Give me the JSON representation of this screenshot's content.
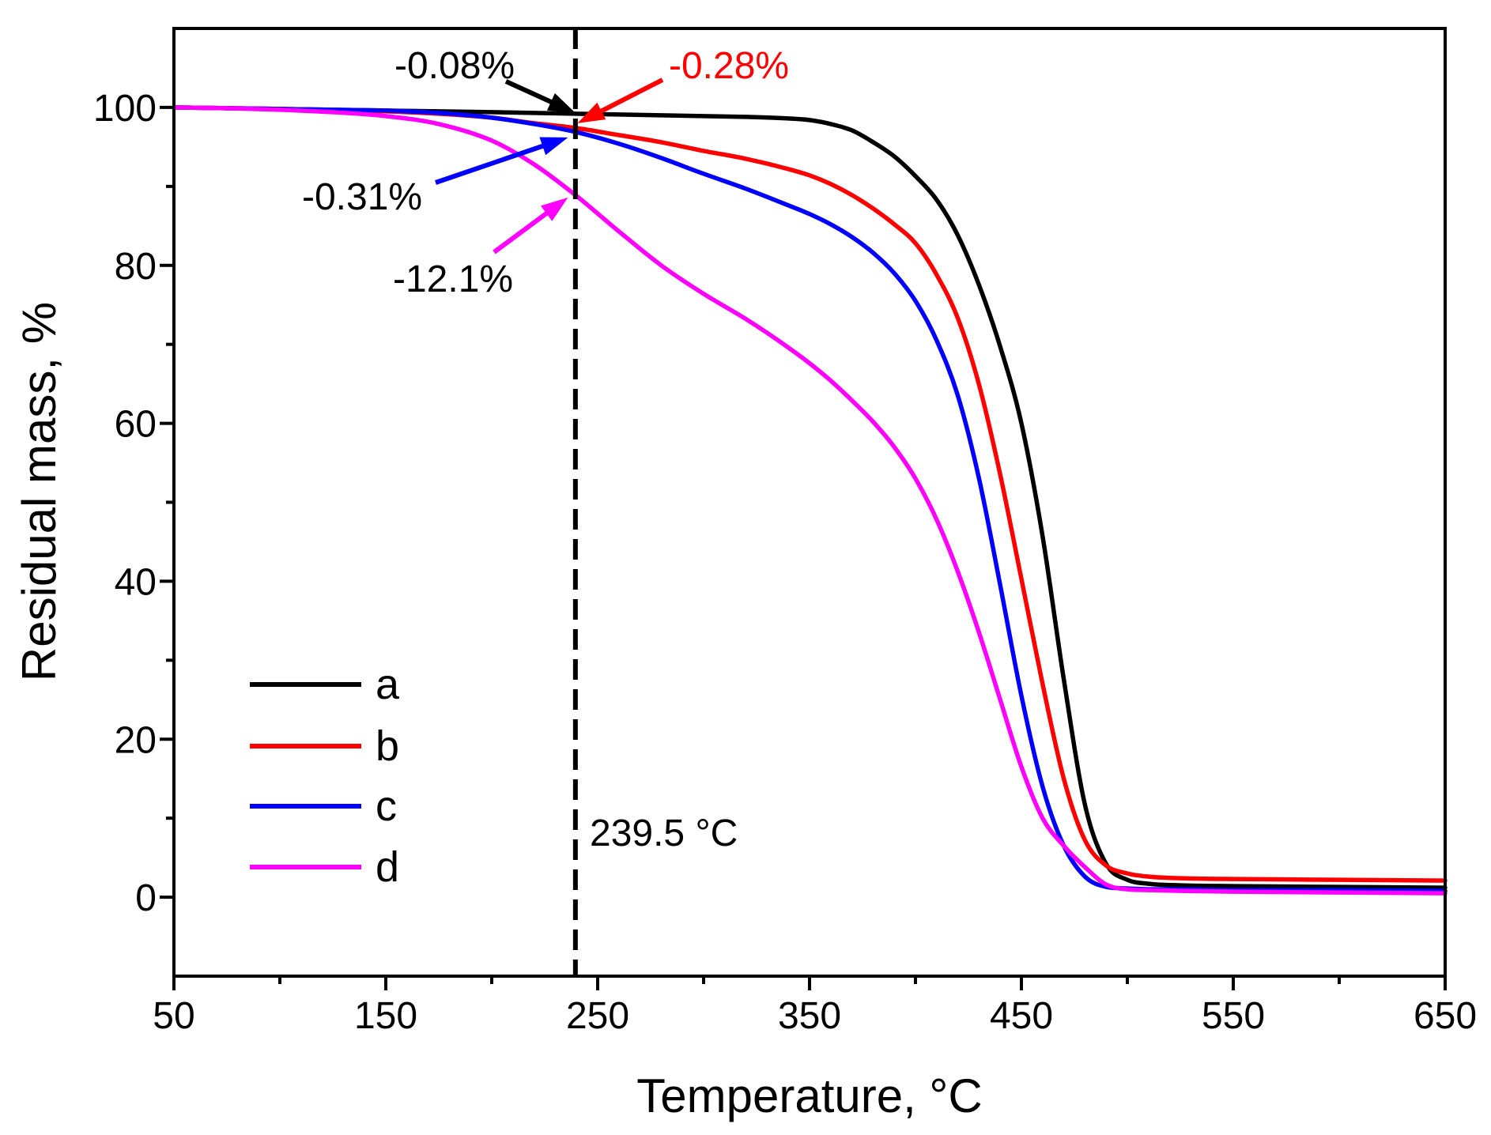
{
  "chart_data": {
    "type": "line",
    "xlabel": "Temperature, °C",
    "ylabel": "Residual mass, %",
    "xlim": [
      50,
      650
    ],
    "ylim": [
      -10,
      110
    ],
    "xticks": [
      50,
      150,
      250,
      350,
      450,
      550,
      650
    ],
    "xminor": [
      100,
      200,
      300,
      400,
      500,
      600
    ],
    "yticks": [
      0,
      20,
      40,
      60,
      80,
      100
    ],
    "yminor": [
      10,
      30,
      50,
      70,
      90
    ],
    "grid": false,
    "x": [
      50,
      75,
      100,
      125,
      150,
      175,
      200,
      220,
      239.5,
      260,
      280,
      300,
      320,
      340,
      350,
      360,
      370,
      380,
      390,
      400,
      410,
      420,
      430,
      440,
      450,
      460,
      470,
      480,
      490,
      500,
      510,
      525,
      550,
      600,
      650
    ],
    "series": [
      {
        "name": "a",
        "color": "#000000",
        "values": [
          100,
          99.9,
          99.8,
          99.7,
          99.6,
          99.5,
          99.4,
          99.3,
          99.2,
          99.1,
          99.0,
          98.9,
          98.8,
          98.6,
          98.4,
          97.9,
          97.1,
          95.6,
          93.8,
          91.3,
          88.3,
          83.8,
          77.5,
          69.7,
          60.0,
          45.7,
          27.6,
          11.7,
          4.2,
          2.2,
          1.7,
          1.5,
          1.4,
          1.3,
          1.2
        ]
      },
      {
        "name": "b",
        "color": "#ff0000",
        "values": [
          100,
          99.9,
          99.8,
          99.6,
          99.5,
          99.2,
          98.7,
          98.0,
          97.4,
          96.5,
          95.6,
          94.5,
          93.5,
          92.2,
          91.4,
          90.3,
          88.9,
          87.2,
          85.2,
          82.8,
          78.8,
          73.3,
          64.9,
          53.5,
          40.3,
          27.0,
          15.0,
          7.2,
          4.0,
          3.0,
          2.6,
          2.4,
          2.3,
          2.2,
          2.1
        ]
      },
      {
        "name": "c",
        "color": "#0000ff",
        "values": [
          100,
          99.9,
          99.8,
          99.7,
          99.6,
          99.3,
          98.7,
          97.9,
          96.9,
          95.4,
          93.6,
          91.6,
          89.7,
          87.6,
          86.5,
          85.2,
          83.6,
          81.6,
          79.0,
          75.5,
          70.5,
          63.5,
          53.0,
          39.5,
          25.5,
          14.0,
          6.5,
          2.6,
          1.3,
          1.1,
          1.0,
          1.0,
          0.9,
          0.9,
          0.8
        ]
      },
      {
        "name": "d",
        "color": "#ff00ff",
        "values": [
          100,
          99.9,
          99.7,
          99.4,
          98.9,
          97.9,
          95.8,
          92.8,
          88.9,
          84.3,
          80.0,
          76.4,
          73.2,
          69.6,
          67.6,
          65.4,
          62.9,
          60.2,
          57.0,
          53.0,
          47.8,
          41.2,
          33.5,
          25.0,
          16.5,
          10.0,
          6.5,
          3.8,
          1.6,
          1.0,
          0.9,
          0.8,
          0.7,
          0.6,
          0.5
        ]
      }
    ],
    "vline": {
      "x": 239.5,
      "label": "239.5 °C"
    },
    "annotations": [
      {
        "text": "-0.08%",
        "x": 239.5,
        "y": 99.3,
        "text_color": "#000000",
        "arrow_color": "#000000"
      },
      {
        "text": "-0.28%",
        "x": 240.5,
        "y": 98.0,
        "text_color": "#ff0000",
        "arrow_color": "#ff0000"
      },
      {
        "text": "-0.31%",
        "x": 236.0,
        "y": 96.2,
        "text_color": "#000000",
        "arrow_color": "#0000ff"
      },
      {
        "text": "-12.1%",
        "x": 236.0,
        "y": 88.6,
        "text_color": "#000000",
        "arrow_color": "#ff00ff"
      }
    ]
  }
}
